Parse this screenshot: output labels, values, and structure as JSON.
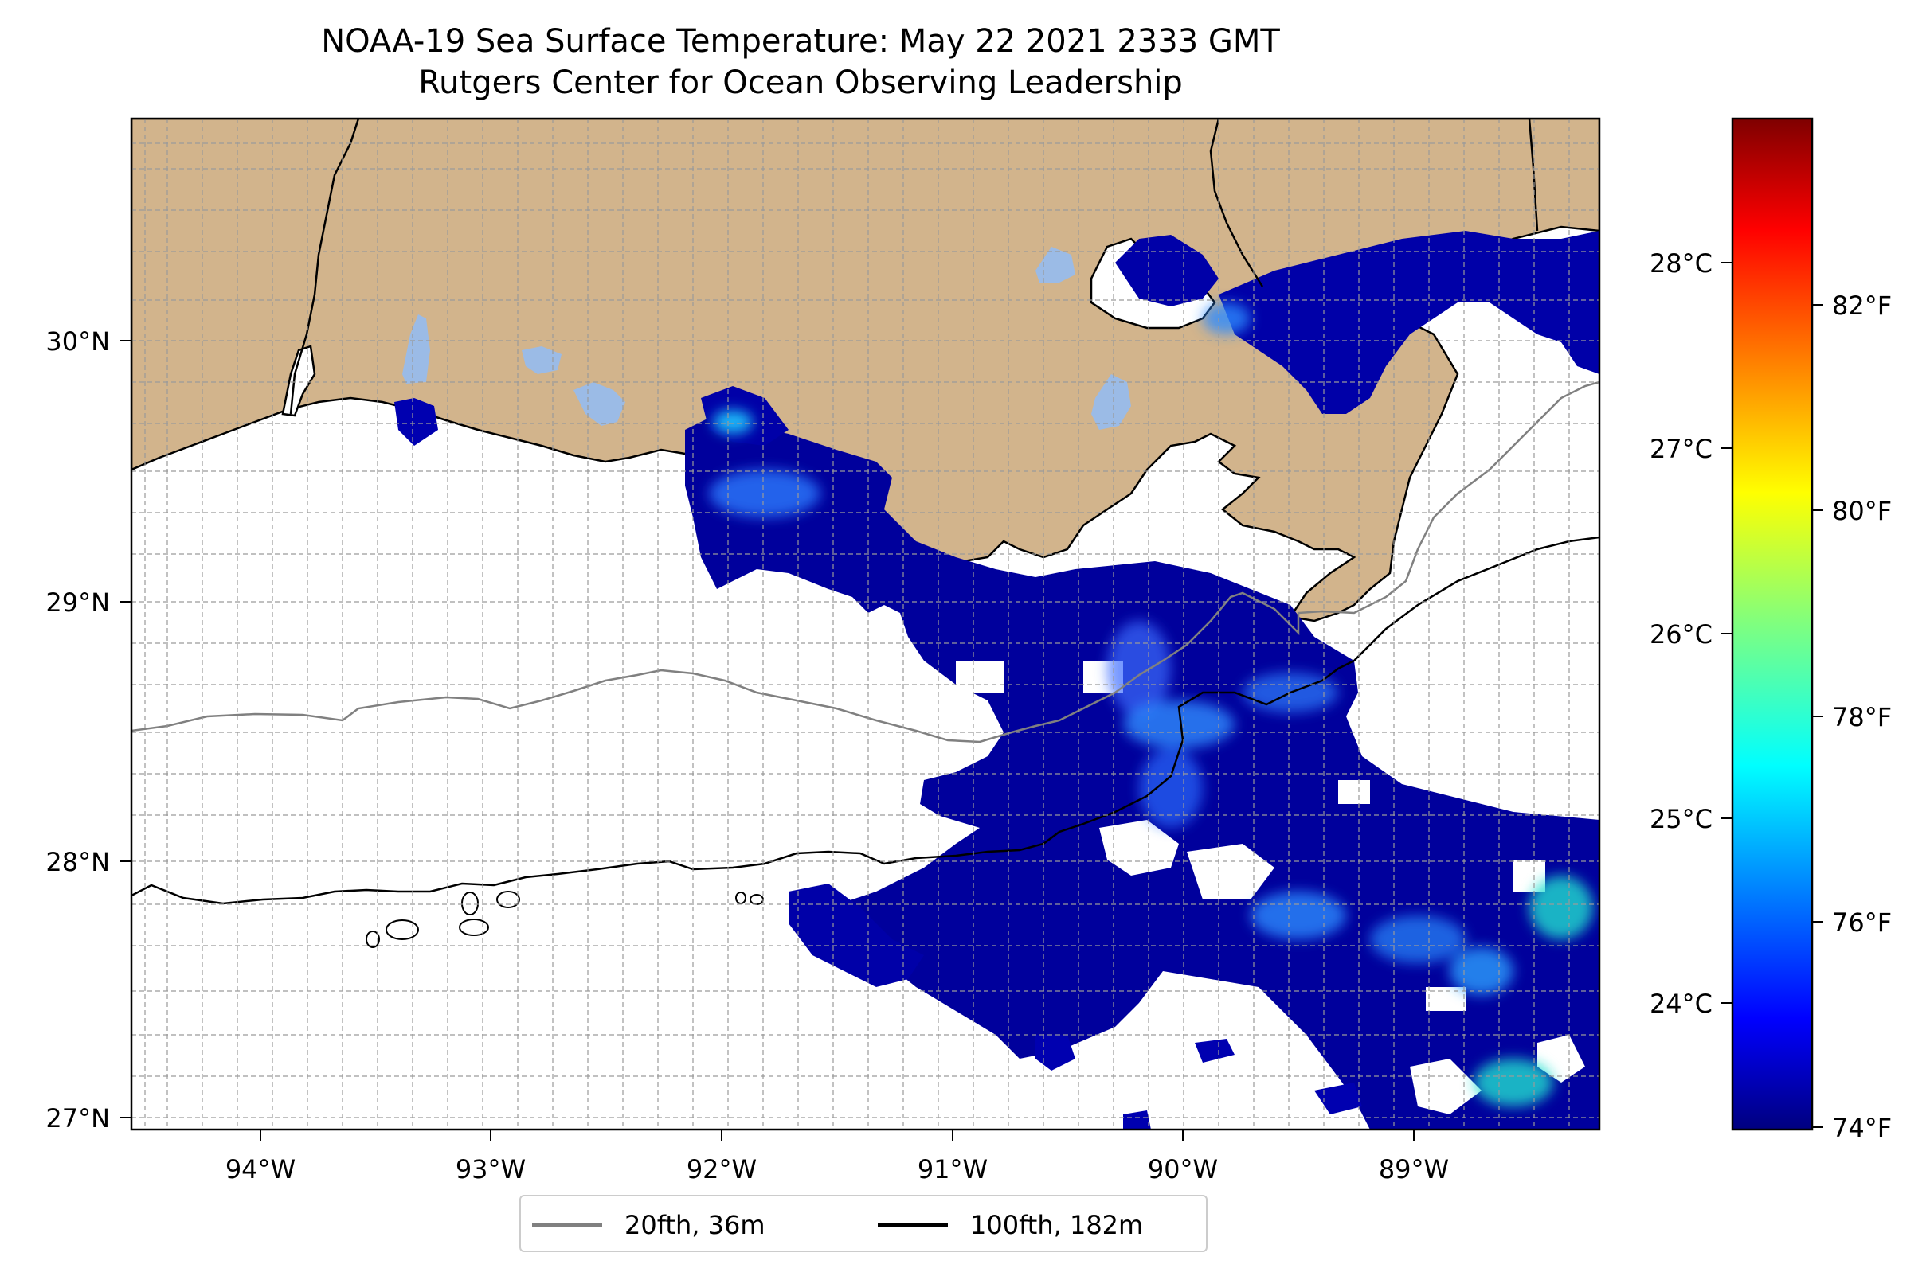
{
  "title": {
    "line1": "NOAA-19 Sea Surface Temperature: May 22 2021 2333 GMT",
    "line2": "Rutgers Center for Ocean Observing Leadership"
  },
  "map": {
    "lon_range": [
      -94.55,
      -88.15
    ],
    "lat_range": [
      26.93,
      30.85
    ],
    "lon_ticks": [
      "94°W",
      "93°W",
      "92°W",
      "91°W",
      "90°W",
      "89°W"
    ],
    "lat_ticks": [
      "30°N",
      "29°N",
      "28°N",
      "27°N"
    ],
    "land_color": "#d2b48c",
    "lake_color": "#9bbbe6",
    "grid": true
  },
  "colorbar": {
    "colormap": "jet",
    "celsius_ticks": [
      "28°C",
      "27°C",
      "26°C",
      "25°C",
      "24°C"
    ],
    "fahrenheit_ticks": [
      "82°F",
      "80°F",
      "78°F",
      "76°F",
      "74°F"
    ]
  },
  "legend": {
    "items": [
      {
        "label": "20fth, 36m",
        "color": "#808080"
      },
      {
        "label": "100fth, 182m",
        "color": "#000000"
      }
    ]
  }
}
